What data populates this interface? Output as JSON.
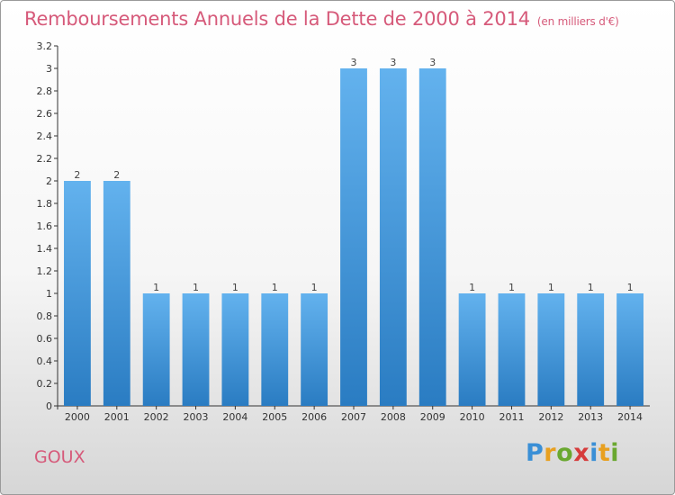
{
  "title": "Remboursements Annuels de la Dette de 2000 à 2014",
  "subtitle": "(en milliers d'€)",
  "commune": "GOUX",
  "logo": {
    "text": "Proxiti",
    "colors": [
      "#3a8fd6",
      "#e8a020",
      "#6aa830",
      "#d63c3c",
      "#3a8fd6",
      "#e8a020",
      "#6aa830"
    ]
  },
  "chart_data": {
    "type": "bar",
    "categories": [
      "2000",
      "2001",
      "2002",
      "2003",
      "2004",
      "2005",
      "2006",
      "2007",
      "2008",
      "2009",
      "2010",
      "2011",
      "2012",
      "2013",
      "2014"
    ],
    "values": [
      2,
      2,
      1,
      1,
      1,
      1,
      1,
      3,
      3,
      3,
      1,
      1,
      1,
      1,
      1
    ],
    "data_labels": [
      "2",
      "2",
      "1",
      "1",
      "1",
      "1",
      "1",
      "3",
      "3",
      "3",
      "1",
      "1",
      "1",
      "1",
      "1"
    ],
    "ylim": [
      0,
      3.2
    ],
    "yticks": [
      0,
      0.2,
      0.4,
      0.6,
      0.8,
      1,
      1.2,
      1.4,
      1.6,
      1.8,
      2,
      2.2,
      2.4,
      2.6,
      2.8,
      3,
      3.2
    ],
    "ytick_labels": [
      "0",
      "0.2",
      "0.4",
      "0.6",
      "0.8",
      "1",
      "1.2",
      "1.4",
      "1.6",
      "1.8",
      "2",
      "2.2",
      "2.4",
      "2.6",
      "2.8",
      "3",
      "3.2"
    ],
    "bar_color": "#3d94d8",
    "grid": false
  }
}
